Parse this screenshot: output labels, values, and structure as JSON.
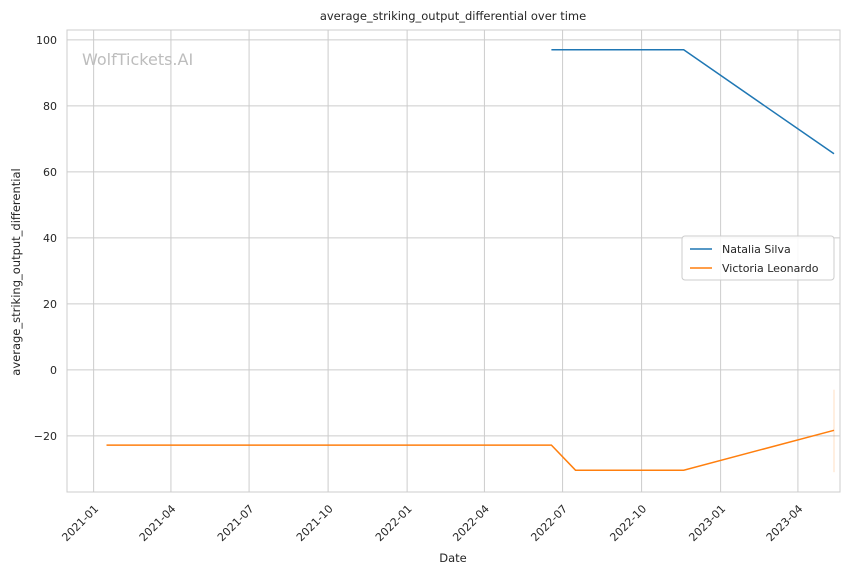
{
  "chart_data": {
    "type": "line",
    "title": "average_striking_output_differential over time",
    "xlabel": "Date",
    "ylabel": "average_striking_output_differential",
    "watermark": "WolfTickets.AI",
    "grid": true,
    "legend_position": "center-right",
    "xlim": [
      "2020-12-01",
      "2023-05-20"
    ],
    "ylim": [
      -37,
      103
    ],
    "x_ticks": [
      "2021-01",
      "2021-04",
      "2021-07",
      "2021-10",
      "2022-01",
      "2022-04",
      "2022-07",
      "2022-10",
      "2023-01",
      "2023-04"
    ],
    "y_ticks": [
      -20,
      0,
      20,
      40,
      60,
      80,
      100
    ],
    "y_tick_labels": [
      "−20",
      "0",
      "20",
      "40",
      "60",
      "80",
      "100"
    ],
    "series": [
      {
        "name": "Natalia Silva",
        "color": "#1f77b4",
        "points": [
          {
            "x": "2022-06-18",
            "y": 97.0
          },
          {
            "x": "2022-11-19",
            "y": 97.0
          },
          {
            "x": "2023-05-13",
            "y": 65.5
          }
        ]
      },
      {
        "name": "Victoria Leonardo",
        "color": "#ff7f0e",
        "points": [
          {
            "x": "2021-01-16",
            "y": -22.8
          },
          {
            "x": "2022-06-18",
            "y": -22.8
          },
          {
            "x": "2022-07-16",
            "y": -30.4
          },
          {
            "x": "2022-11-19",
            "y": -30.4
          },
          {
            "x": "2023-05-13",
            "y": -18.3
          }
        ],
        "error_band": {
          "x": "2023-05-13",
          "low": -31,
          "high": -6
        }
      }
    ]
  }
}
